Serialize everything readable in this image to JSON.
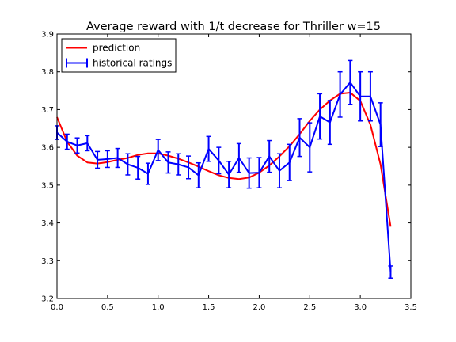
{
  "chart_data": {
    "type": "line",
    "title": "Average reward with 1/t decrease for Thriller w=15",
    "xlabel": "",
    "ylabel": "",
    "xlim": [
      0.0,
      3.5
    ],
    "ylim": [
      3.2,
      3.9
    ],
    "xticks": [
      "0.0",
      "0.5",
      "1.0",
      "1.5",
      "2.0",
      "2.5",
      "3.0",
      "3.5"
    ],
    "yticks": [
      "3.2",
      "3.3",
      "3.4",
      "3.5",
      "3.6",
      "3.7",
      "3.8",
      "3.9"
    ],
    "grid": false,
    "legend": "top-left",
    "x": [
      0.0,
      0.1,
      0.2,
      0.3,
      0.4,
      0.5,
      0.6,
      0.7,
      0.8,
      0.9,
      1.0,
      1.1,
      1.2,
      1.3,
      1.4,
      1.5,
      1.6,
      1.7,
      1.8,
      1.9,
      2.0,
      2.1,
      2.2,
      2.3,
      2.4,
      2.5,
      2.6,
      2.7,
      2.8,
      2.9,
      3.0,
      3.1,
      3.2,
      3.3
    ],
    "series": [
      {
        "name": "prediction",
        "color": "#ff0000",
        "values": [
          3.68,
          3.615,
          3.578,
          3.56,
          3.557,
          3.561,
          3.567,
          3.572,
          3.58,
          3.584,
          3.584,
          3.578,
          3.57,
          3.56,
          3.549,
          3.537,
          3.526,
          3.519,
          3.516,
          3.52,
          3.533,
          3.552,
          3.576,
          3.603,
          3.635,
          3.67,
          3.7,
          3.724,
          3.742,
          3.745,
          3.723,
          3.66,
          3.555,
          3.39
        ]
      },
      {
        "name": "historical ratings",
        "color": "#0000ff",
        "values": [
          3.639,
          3.615,
          3.605,
          3.611,
          3.567,
          3.569,
          3.572,
          3.555,
          3.546,
          3.53,
          3.593,
          3.56,
          3.555,
          3.547,
          3.526,
          3.596,
          3.565,
          3.528,
          3.572,
          3.532,
          3.533,
          3.576,
          3.538,
          3.56,
          3.626,
          3.6,
          3.682,
          3.666,
          3.74,
          3.772,
          3.735,
          3.735,
          3.66,
          3.27
        ],
        "errors": [
          0.018,
          0.02,
          0.02,
          0.02,
          0.022,
          0.022,
          0.025,
          0.028,
          0.03,
          0.028,
          0.028,
          0.028,
          0.028,
          0.03,
          0.033,
          0.033,
          0.035,
          0.035,
          0.038,
          0.04,
          0.04,
          0.042,
          0.045,
          0.048,
          0.05,
          0.065,
          0.06,
          0.058,
          0.06,
          0.058,
          0.065,
          0.065,
          0.058,
          0.016
        ]
      }
    ]
  }
}
